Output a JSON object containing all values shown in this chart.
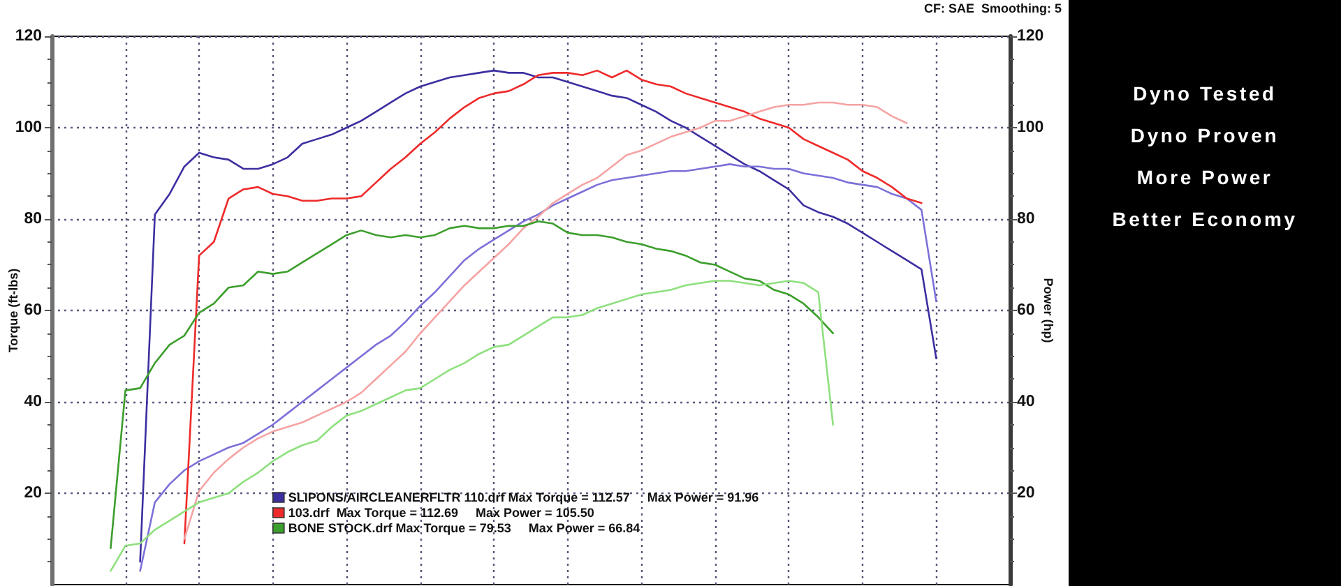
{
  "chart_data": {
    "type": "line",
    "ylabel": "Torque (ft-lbs)",
    "y2label": "Power (hp)",
    "annotations": [
      "CF: SAE  Smoothing: 5",
      "Dyno Tested",
      "Dyno Proven",
      "More Power",
      "Better Economy"
    ],
    "categories": [
      null,
      null,
      null,
      null,
      null,
      null,
      null,
      null,
      null,
      null,
      null,
      null,
      null,
      null,
      null,
      null,
      null,
      null,
      null,
      null,
      null,
      null,
      null,
      null,
      null,
      null,
      null,
      null,
      null,
      null,
      null,
      null,
      null,
      null,
      null,
      null,
      null,
      null,
      null,
      null,
      null,
      null,
      null,
      null,
      null,
      null,
      null,
      null,
      null,
      null,
      null,
      null,
      null,
      null,
      null,
      null,
      null,
      null,
      null,
      null,
      null,
      null,
      null,
      null,
      null,
      null
    ],
    "series": [
      {
        "name": "SLIPONS/AIRCLEANERFLTR 110.drf Max Torque = 112.57     Max Power = 91.96",
        "color": "#3c2fa0",
        "values": [
          null,
          null,
          null,
          null,
          null,
          null,
          5,
          81,
          85.5,
          91.5,
          94.5,
          93.5,
          93,
          91,
          91,
          92,
          93.5,
          96.5,
          97.5,
          98.5,
          100,
          101.5,
          103.5,
          105.5,
          107.5,
          109,
          110,
          111,
          111.5,
          112,
          112.5,
          112,
          112,
          111,
          111,
          110,
          109,
          108,
          107,
          106.5,
          105,
          103.5,
          101.5,
          100,
          98,
          96,
          94,
          92,
          90.5,
          88.5,
          86.5,
          83,
          81.5,
          80.5,
          79,
          77,
          75,
          73,
          71,
          69,
          49.5,
          null,
          null,
          null,
          null,
          null
        ]
      },
      {
        "color": "#7c70d8",
        "values": [
          null,
          null,
          null,
          null,
          null,
          null,
          3,
          18,
          22,
          25,
          27,
          28.5,
          30,
          31,
          33,
          35,
          37.5,
          40,
          42.5,
          45,
          47.5,
          50,
          52.5,
          54.5,
          57.5,
          61,
          64,
          67.5,
          71,
          73.5,
          75.5,
          77.5,
          79.5,
          81,
          83,
          84.5,
          86,
          87.5,
          88.5,
          89,
          89.5,
          90,
          90.5,
          90.5,
          91,
          91.5,
          92,
          91.5,
          91.5,
          91,
          91,
          90,
          89.5,
          89,
          88,
          87.5,
          87,
          85.5,
          84.5,
          82,
          62,
          null,
          null,
          null,
          null,
          null
        ]
      },
      {
        "name": "103.drf  Max Torque = 112.69     Max Power = 105.50",
        "color": "#ee2a2a",
        "values": [
          null,
          null,
          null,
          null,
          null,
          null,
          null,
          null,
          null,
          9,
          72,
          75,
          84.5,
          86.5,
          87,
          85.5,
          85,
          84,
          84,
          84.5,
          84.5,
          85,
          88,
          91,
          93.5,
          96.5,
          99,
          102,
          104.5,
          106.5,
          107.5,
          108,
          109.5,
          111.5,
          112,
          112,
          111.5,
          112.5,
          111,
          112.5,
          110.5,
          109.5,
          109,
          107.5,
          106.5,
          105.5,
          104.5,
          103.5,
          102,
          101,
          100,
          97.5,
          96,
          94.5,
          93,
          90.5,
          89,
          87,
          84.5,
          83.5,
          null,
          null,
          null,
          null,
          null,
          null
        ]
      },
      {
        "color": "#f5a3a3",
        "values": [
          null,
          null,
          null,
          null,
          null,
          null,
          null,
          null,
          null,
          10,
          20.5,
          24.5,
          27.5,
          30,
          32,
          33.5,
          34.5,
          35.5,
          37,
          38.5,
          40,
          42,
          45,
          48,
          51,
          55,
          58.5,
          62,
          65.5,
          68.5,
          71.5,
          74.5,
          78,
          80.5,
          83.5,
          85.5,
          87.5,
          89,
          91.5,
          94,
          95,
          96.5,
          98,
          99,
          100,
          101.5,
          101.5,
          102.5,
          103.5,
          104.5,
          105,
          105,
          105.5,
          105.5,
          105,
          105,
          104.5,
          102.5,
          101,
          null,
          null,
          null,
          null,
          null,
          null,
          null
        ]
      },
      {
        "name": "BONE STOCK.drf Max Torque = 79.53     Max Power = 66.84",
        "color": "#3c9e2c",
        "values": [
          null,
          null,
          null,
          null,
          8,
          42.5,
          43,
          48.5,
          52.5,
          54.5,
          59.5,
          61.5,
          65,
          65.5,
          68.5,
          68,
          68.5,
          70.5,
          72.5,
          74.5,
          76.5,
          77.5,
          76.5,
          76,
          76.5,
          76,
          76.5,
          78,
          78.5,
          78,
          78,
          78.5,
          78.5,
          79.5,
          79,
          77,
          76.5,
          76.5,
          76,
          75,
          74.5,
          73.5,
          73,
          72,
          70.5,
          70,
          68.5,
          67,
          66.5,
          64.5,
          63.5,
          61.5,
          58.5,
          55,
          null,
          null,
          null,
          null,
          null,
          null,
          null,
          null,
          null,
          null,
          null,
          null
        ]
      },
      {
        "color": "#8ee07e",
        "values": [
          null,
          null,
          null,
          null,
          3,
          8.5,
          9,
          12,
          14,
          16,
          18,
          19,
          20,
          22.5,
          24.5,
          27,
          29,
          30.5,
          31.5,
          34.5,
          37,
          38,
          39.5,
          41,
          42.5,
          43,
          45,
          47,
          48.5,
          50.5,
          52,
          52.5,
          54.5,
          56.5,
          58.5,
          58.5,
          59,
          60.5,
          61.5,
          62.5,
          63.5,
          64,
          64.5,
          65.5,
          66,
          66.5,
          66.5,
          66,
          65.5,
          66,
          66.5,
          66,
          64,
          35,
          null,
          null,
          null,
          null,
          null,
          null,
          null,
          null,
          null,
          null,
          null,
          null
        ]
      }
    ],
    "ylim": [
      0,
      120
    ],
    "yticks": [
      20,
      40,
      60,
      80,
      100,
      120
    ],
    "y2lim": [
      0,
      120
    ],
    "y2ticks": [
      20,
      40,
      60,
      80,
      100,
      120
    ],
    "grid": true,
    "legend": "bottom",
    "tick_labels": "y",
    "marker": "none"
  }
}
